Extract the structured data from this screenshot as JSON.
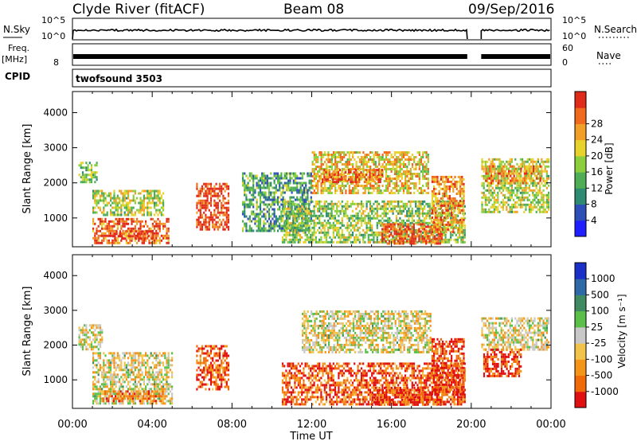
{
  "header": {
    "station": "Clyde River (fitACF)",
    "beam": "Beam 08",
    "date": "09/Sep/2016"
  },
  "top_panels": {
    "nsky_label": "N.Sky",
    "nsky_ticks": [
      "10^5",
      "10^0"
    ],
    "nsearch_label": "N.Search",
    "nsearch_ticks": [
      "10^5",
      "10^0"
    ],
    "freq_label": "Freq.",
    "freq_unit": "[MHz]",
    "freq_ticks": [
      "8"
    ],
    "nave_label": "Nave",
    "nave_ticks": [
      "60",
      "0"
    ],
    "cpid_label": "CPID",
    "cpid_value": "twofsound 3503"
  },
  "chart_data": [
    {
      "type": "heatmap",
      "panel": "power",
      "ylabel": "Slant Range [km]",
      "yticks": [
        1000,
        2000,
        3000,
        4000
      ],
      "ylim": [
        180,
        4600
      ],
      "xlim": [
        0,
        24
      ],
      "colorbar": {
        "label": "Power [dB]",
        "ticks": [
          "4",
          "8",
          "12",
          "16",
          "20",
          "24",
          "28"
        ],
        "colors": [
          "#1f1fff",
          "#2f4fb8",
          "#2e8a70",
          "#4fae55",
          "#8ccf3e",
          "#e8d22c",
          "#f0a028",
          "#f06a1e",
          "#e02a1a"
        ]
      },
      "data_gap": [
        19.8,
        20.5
      ],
      "regions": [
        {
          "t": [
            0.3,
            1.2
          ],
          "r": [
            2000,
            2600
          ],
          "level": 0.45
        },
        {
          "t": [
            1.0,
            4.6
          ],
          "r": [
            1100,
            1800
          ],
          "level": 0.55
        },
        {
          "t": [
            1.0,
            4.8
          ],
          "r": [
            300,
            1000
          ],
          "level": 0.85
        },
        {
          "t": [
            2.0,
            4.0
          ],
          "r": [
            400,
            650
          ],
          "level": 0.98
        },
        {
          "t": [
            6.2,
            7.8
          ],
          "r": [
            700,
            2000
          ],
          "level": 0.9
        },
        {
          "t": [
            8.5,
            12.0
          ],
          "r": [
            600,
            2300
          ],
          "level": 0.35
        },
        {
          "t": [
            12.0,
            17.8
          ],
          "r": [
            1700,
            2900
          ],
          "level": 0.65
        },
        {
          "t": [
            12.5,
            15.5
          ],
          "r": [
            2000,
            2400
          ],
          "level": 0.82
        },
        {
          "t": [
            10.5,
            19.7
          ],
          "r": [
            300,
            1500
          ],
          "level": 0.5
        },
        {
          "t": [
            15.5,
            18.5
          ],
          "r": [
            300,
            850
          ],
          "level": 0.9
        },
        {
          "t": [
            18.0,
            19.6
          ],
          "r": [
            600,
            2200
          ],
          "level": 0.75
        },
        {
          "t": [
            20.5,
            23.9
          ],
          "r": [
            1200,
            2700
          ],
          "level": 0.55
        },
        {
          "t": [
            20.7,
            23.5
          ],
          "r": [
            2000,
            2500
          ],
          "level": 0.72
        }
      ]
    },
    {
      "type": "heatmap",
      "panel": "velocity",
      "ylabel": "Slant Range [km]",
      "yticks": [
        1000,
        2000,
        3000,
        4000
      ],
      "ylim": [
        180,
        4600
      ],
      "xlim": [
        0,
        24
      ],
      "xticks": [
        "00:00",
        "04:00",
        "08:00",
        "12:00",
        "16:00",
        "20:00",
        "00:00"
      ],
      "xlabel": "Time UT",
      "colorbar": {
        "label": "Velocity [m s⁻¹]",
        "ticks": [
          "-1000",
          "-500",
          "-100",
          "-25",
          "25",
          "100",
          "500",
          "1000"
        ],
        "colors": [
          "#e01010",
          "#f06a0a",
          "#f4941a",
          "#f2c34a",
          "#c8c8c8",
          "#5bc04a",
          "#3f8a60",
          "#2e6aa8",
          "#1a30c8"
        ]
      },
      "data_gap": [
        19.8,
        20.5
      ],
      "regions": [
        {
          "t": [
            0.3,
            1.5
          ],
          "r": [
            1900,
            2600
          ],
          "level": 0.45
        },
        {
          "t": [
            1.0,
            5.0
          ],
          "r": [
            300,
            1800
          ],
          "level": 0.45
        },
        {
          "t": [
            1.5,
            4.5
          ],
          "r": [
            400,
            700
          ],
          "level": 0.25
        },
        {
          "t": [
            6.2,
            7.8
          ],
          "r": [
            700,
            2000
          ],
          "level": 0.15
        },
        {
          "t": [
            11.5,
            18.0
          ],
          "r": [
            1800,
            3000
          ],
          "level": 0.45
        },
        {
          "t": [
            10.5,
            19.7
          ],
          "r": [
            300,
            1500
          ],
          "level": 0.15
        },
        {
          "t": [
            15.0,
            18.5
          ],
          "r": [
            300,
            800
          ],
          "level": 0.1
        },
        {
          "t": [
            18.0,
            19.6
          ],
          "r": [
            600,
            2200
          ],
          "level": 0.1
        },
        {
          "t": [
            20.5,
            23.9
          ],
          "r": [
            1900,
            2800
          ],
          "level": 0.45
        },
        {
          "t": [
            20.6,
            22.5
          ],
          "r": [
            1100,
            1900
          ],
          "level": 0.08
        }
      ]
    }
  ]
}
